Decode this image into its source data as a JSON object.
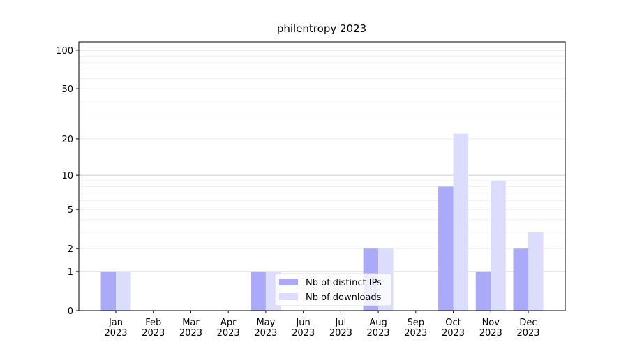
{
  "chart_data": {
    "type": "bar",
    "title": "philentropy 2023",
    "categories": [
      "Jan\n2023",
      "Feb\n2023",
      "Mar\n2023",
      "Apr\n2023",
      "May\n2023",
      "Jun\n2023",
      "Jul\n2023",
      "Aug\n2023",
      "Sep\n2023",
      "Oct\n2023",
      "Nov\n2023",
      "Dec\n2023"
    ],
    "series": [
      {
        "name": "Nb of distinct IPs",
        "color": "#aaaaf8",
        "values": [
          1,
          0,
          0,
          0,
          1,
          0,
          0,
          2,
          0,
          8,
          1,
          2
        ]
      },
      {
        "name": "Nb of downloads",
        "color": "#dcdcfc",
        "values": [
          1,
          0,
          0,
          0,
          1,
          0,
          0,
          2,
          0,
          22,
          9,
          3
        ]
      }
    ],
    "y_scale": "log1p",
    "ylim": [
      0,
      116
    ],
    "yticks": [
      0,
      1,
      2,
      5,
      10,
      20,
      50,
      100
    ],
    "y_minor_ticks": [
      3,
      4,
      6,
      7,
      8,
      9,
      30,
      40,
      60,
      70,
      80,
      90
    ],
    "grid": true,
    "legend": "lower center"
  }
}
